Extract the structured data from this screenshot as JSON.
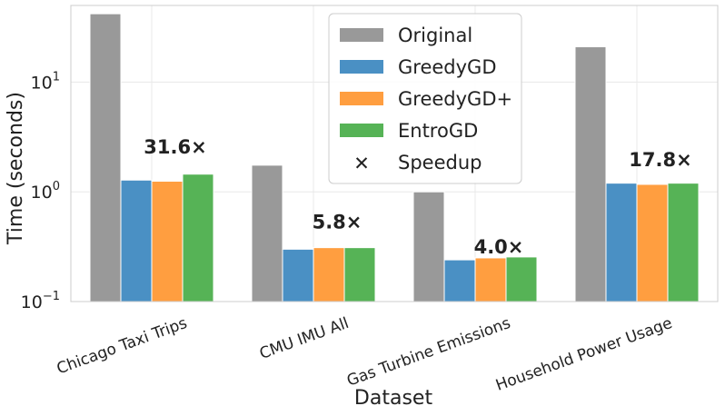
{
  "chart_data": {
    "type": "bar",
    "title": "",
    "xlabel": "Dataset",
    "ylabel": "Time (seconds)",
    "yscale": "log",
    "ylim": [
      0.1,
      50
    ],
    "yticks": [
      {
        "value": 0.1,
        "base": "10",
        "exp": "−1"
      },
      {
        "value": 1,
        "base": "10",
        "exp": "0"
      },
      {
        "value": 10,
        "base": "10",
        "exp": "1"
      }
    ],
    "grid": true,
    "legend_position": "top-center",
    "categories": [
      "Chicago Taxi Trips",
      "CMU IMU All",
      "Gas Turbine Emissions",
      "Household Power Usage"
    ],
    "series": [
      {
        "name": "Original",
        "color": "#999999",
        "values": [
          42,
          1.75,
          1.0,
          21
        ]
      },
      {
        "name": "GreedyGD",
        "color": "#4a90c4",
        "values": [
          1.28,
          0.3,
          0.24,
          1.2
        ]
      },
      {
        "name": "GreedyGD+",
        "color": "#ff9e40",
        "values": [
          1.25,
          0.31,
          0.25,
          1.17
        ]
      },
      {
        "name": "EntroGD",
        "color": "#56b356",
        "values": [
          1.45,
          0.31,
          0.255,
          1.2
        ]
      }
    ],
    "speedup": {
      "legend_label": "Speedup",
      "marker": "✕",
      "labels": [
        "31.6×",
        "5.8×",
        "4.0×",
        "17.8×"
      ],
      "label_y_values": [
        2.6,
        0.54,
        0.32,
        2.0
      ]
    }
  }
}
